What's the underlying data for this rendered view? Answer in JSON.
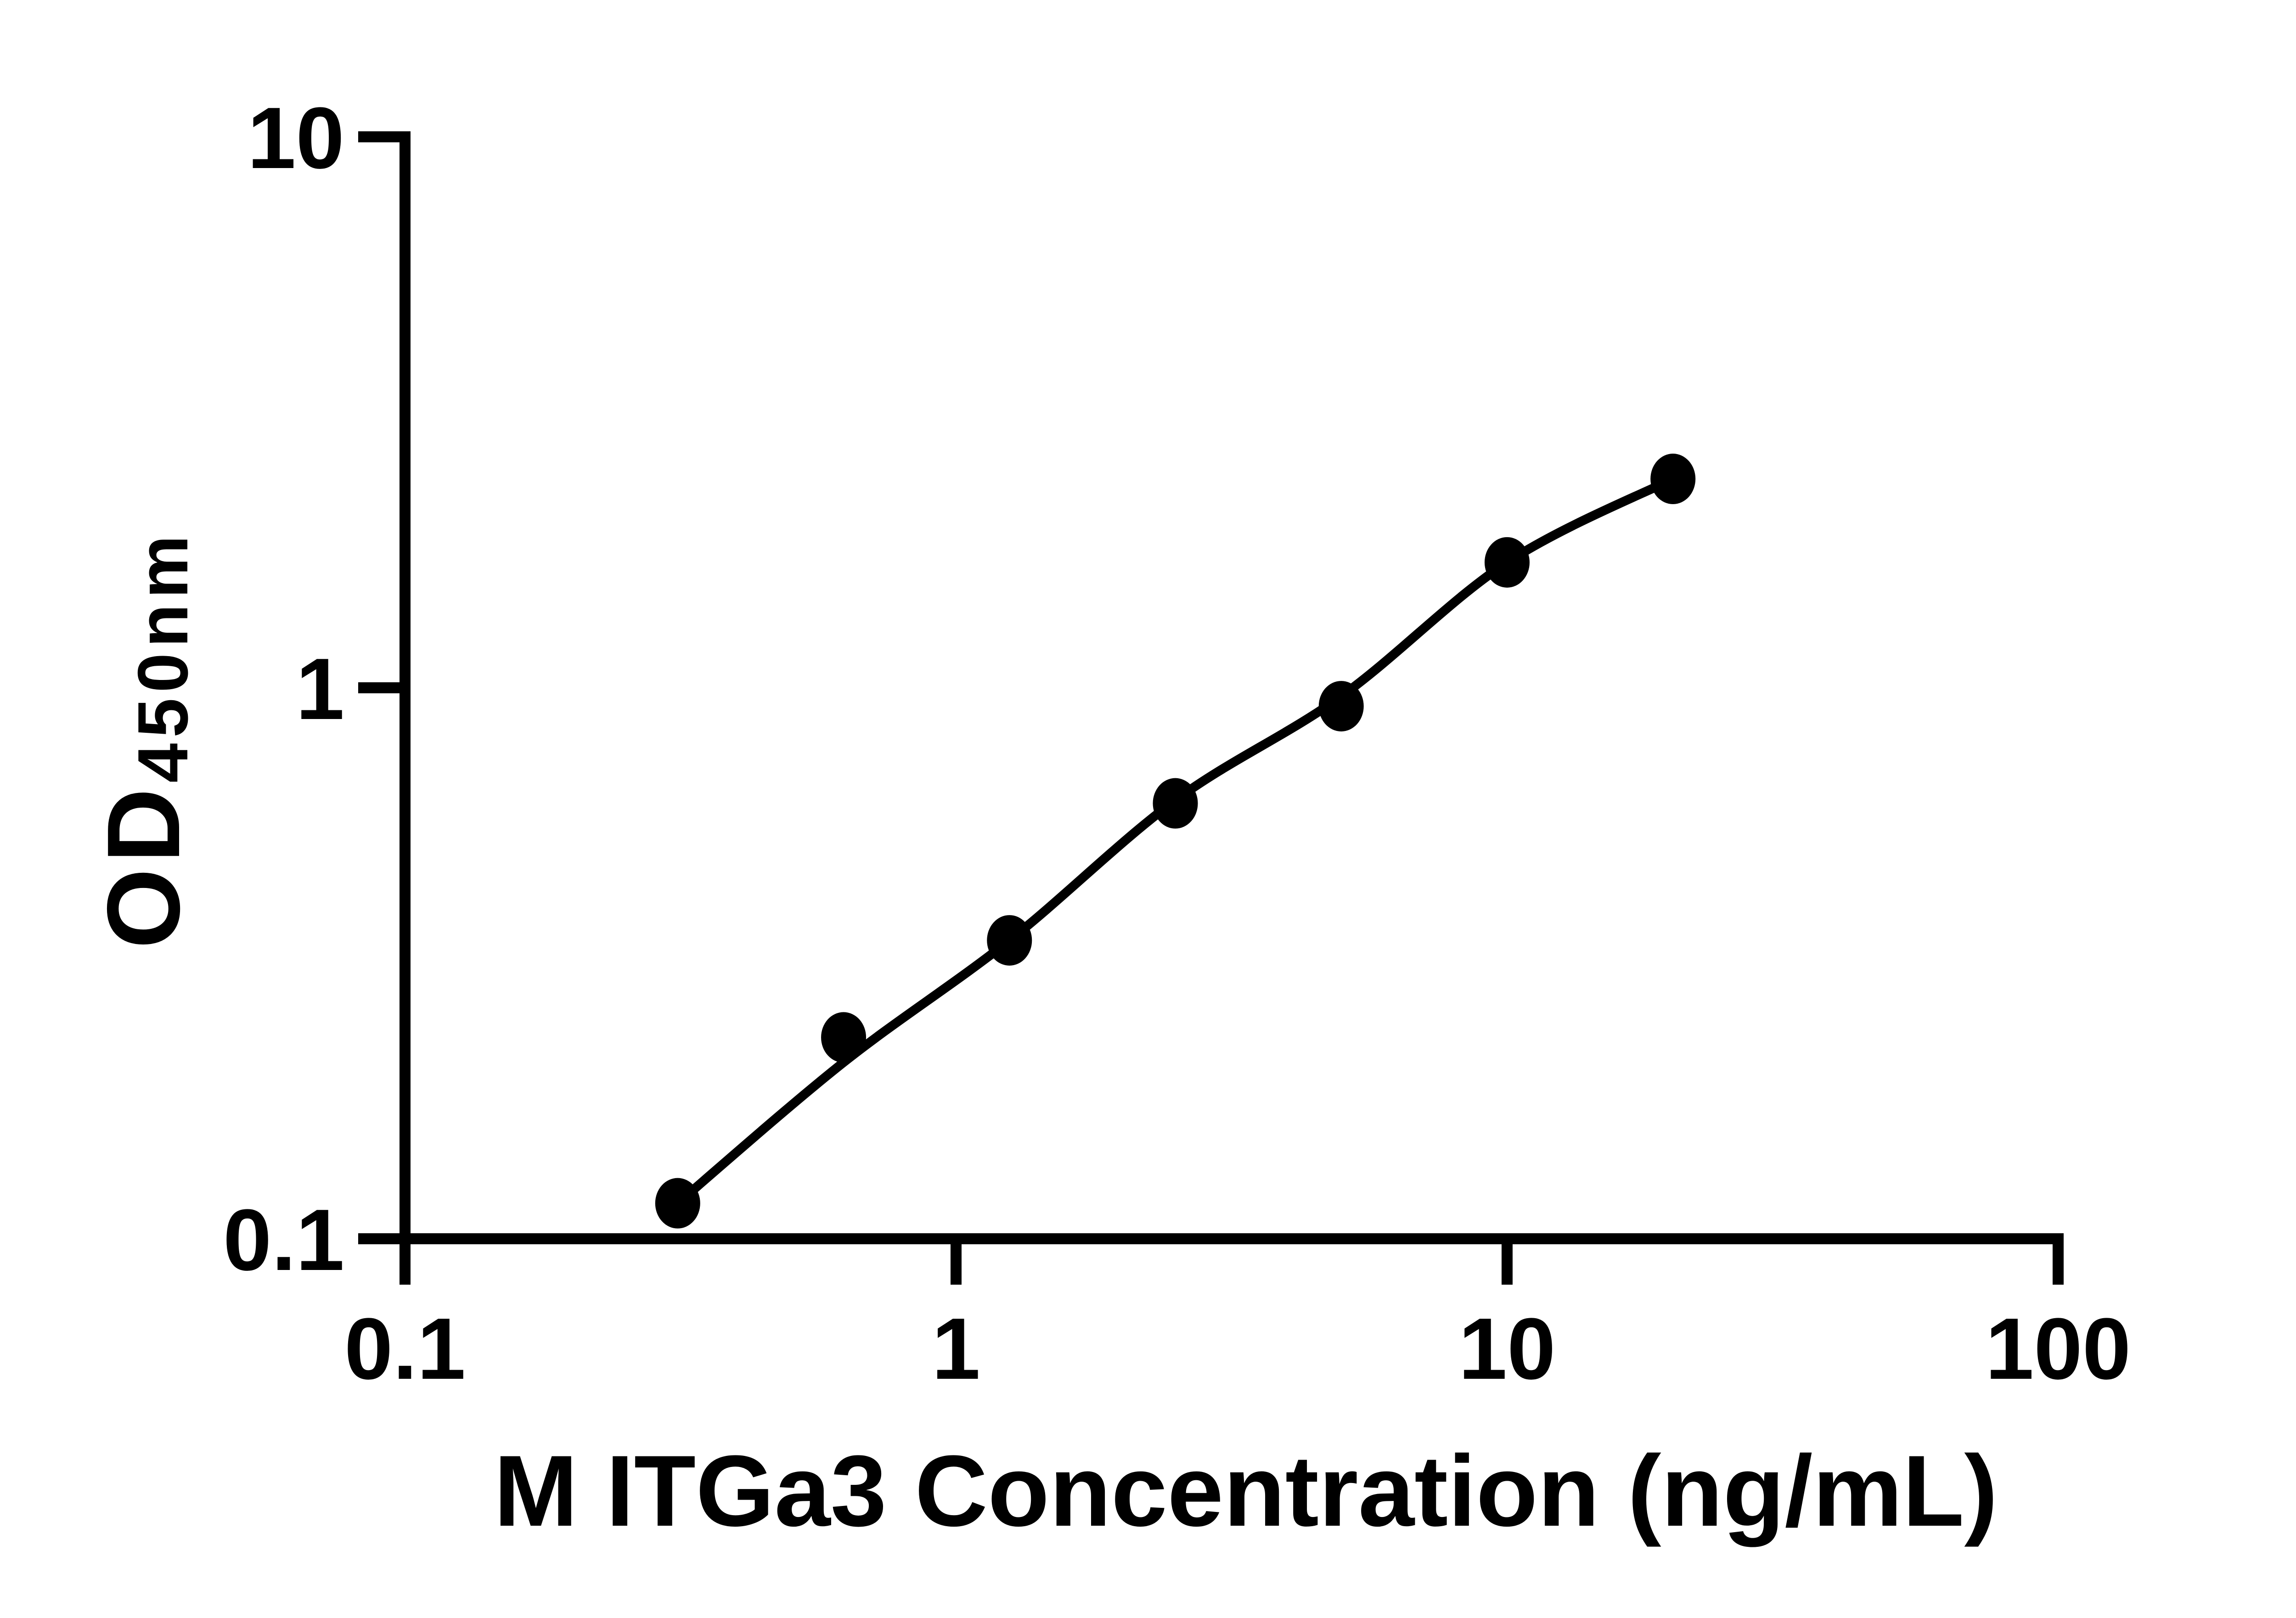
{
  "chart_data": {
    "type": "scatter",
    "title": "",
    "xlabel": "M ITGa3 Concentration (ng/mL)",
    "ylabel": "OD450nm",
    "ylabel_main": "OD",
    "ylabel_sub": "450nm",
    "x_scale": "log",
    "y_scale": "log",
    "xlim": [
      0.1,
      100
    ],
    "ylim": [
      0.1,
      10
    ],
    "grid": false,
    "legend": false,
    "x_ticks": {
      "values": [
        0.1,
        1,
        10,
        100
      ],
      "labels": [
        "0.1",
        "1",
        "10",
        "100"
      ]
    },
    "y_ticks": {
      "values": [
        0.1,
        1,
        10
      ],
      "labels": [
        "0.1",
        "1",
        "10"
      ]
    },
    "series": [
      {
        "marker": "filled-circle",
        "color": "#000000",
        "points": [
          {
            "x": 0.3125,
            "y": 0.116
          },
          {
            "x": 0.625,
            "y": 0.232
          },
          {
            "x": 1.25,
            "y": 0.348
          },
          {
            "x": 2.5,
            "y": 0.617
          },
          {
            "x": 5,
            "y": 0.926
          },
          {
            "x": 10,
            "y": 1.689
          },
          {
            "x": 20,
            "y": 2.394
          }
        ],
        "fit_curve_points": [
          {
            "x": 0.3125,
            "y": 0.116
          },
          {
            "x": 0.625,
            "y": 0.209
          },
          {
            "x": 1.25,
            "y": 0.348
          },
          {
            "x": 2.5,
            "y": 0.625
          },
          {
            "x": 5,
            "y": 0.965
          },
          {
            "x": 10,
            "y": 1.689
          },
          {
            "x": 20,
            "y": 2.394
          }
        ]
      }
    ],
    "colors": {
      "foreground": "#000000",
      "background": "#ffffff"
    }
  }
}
